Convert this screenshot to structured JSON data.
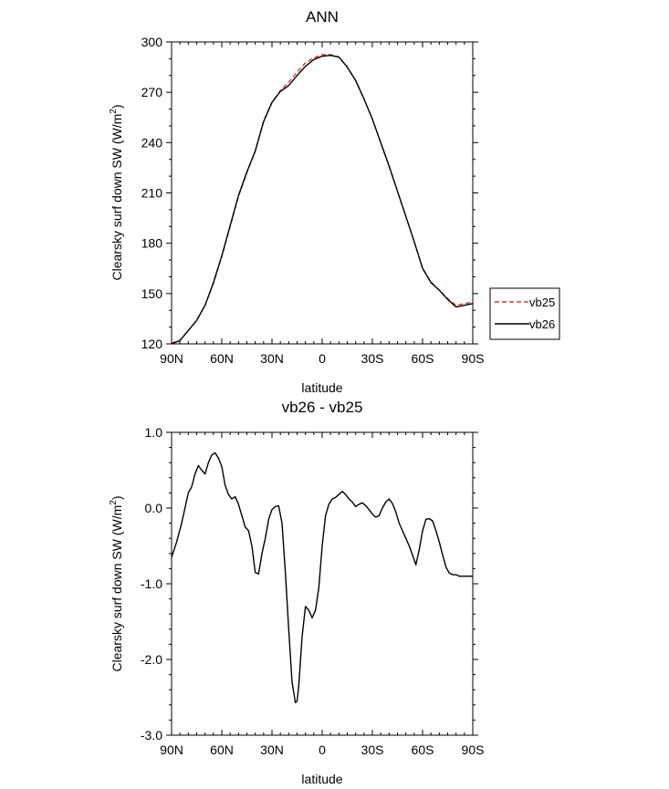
{
  "chart_data": [
    {
      "type": "line",
      "title": "ANN",
      "xlabel": "latitude",
      "ylabel_main": "Clearsky surf down SW (W/m",
      "ylabel_sup": "2",
      "ylabel_close": ")",
      "xlim": [
        90,
        -90
      ],
      "ylim": [
        120,
        300
      ],
      "xticks": [
        {
          "value": 90,
          "label": "90N"
        },
        {
          "value": 60,
          "label": "60N"
        },
        {
          "value": 30,
          "label": "30N"
        },
        {
          "value": 0,
          "label": "0"
        },
        {
          "value": -30,
          "label": "30S"
        },
        {
          "value": -60,
          "label": "60S"
        },
        {
          "value": -90,
          "label": "90S"
        }
      ],
      "yticks": [
        {
          "value": 120,
          "label": "120"
        },
        {
          "value": 150,
          "label": "150"
        },
        {
          "value": 180,
          "label": "180"
        },
        {
          "value": 210,
          "label": "210"
        },
        {
          "value": 240,
          "label": "240"
        },
        {
          "value": 270,
          "label": "270"
        },
        {
          "value": 300,
          "label": "300"
        }
      ],
      "legend": {
        "position": "right"
      },
      "series": [
        {
          "name": "vb25",
          "color": "#e8312e",
          "dash": "dashed",
          "x": [
            90,
            85,
            80,
            75,
            70,
            65,
            60,
            55,
            50,
            45,
            40,
            35,
            30,
            25,
            20,
            15,
            10,
            5,
            0,
            -5,
            -10,
            -15,
            -20,
            -25,
            -30,
            -35,
            -40,
            -45,
            -50,
            -55,
            -60,
            -65,
            -70,
            -75,
            -80,
            -85,
            -90
          ],
          "y": [
            120.5,
            122,
            128,
            134,
            143,
            156,
            172,
            190,
            208,
            222,
            235,
            253,
            264,
            271,
            276,
            282,
            287.5,
            290.5,
            292.5,
            292.5,
            291,
            285,
            277,
            266,
            254,
            240,
            226,
            211,
            196,
            181,
            165,
            157,
            152,
            147,
            143,
            144,
            145
          ]
        },
        {
          "name": "vb26",
          "color": "#000000",
          "dash": "solid",
          "x": [
            90,
            85,
            80,
            75,
            70,
            65,
            60,
            55,
            50,
            45,
            40,
            35,
            30,
            25,
            20,
            15,
            10,
            5,
            0,
            -5,
            -10,
            -15,
            -20,
            -25,
            -30,
            -35,
            -40,
            -45,
            -50,
            -55,
            -60,
            -65,
            -70,
            -75,
            -80,
            -85,
            -90
          ],
          "y": [
            120,
            122,
            128,
            134,
            143,
            156.5,
            172.5,
            190.5,
            208.5,
            222.5,
            235,
            252.5,
            264,
            270.5,
            274,
            280,
            285.5,
            289.5,
            291.5,
            292,
            291,
            285,
            277,
            266,
            254,
            240,
            226,
            211,
            196,
            181,
            165,
            156.5,
            152,
            146.5,
            142,
            143,
            144
          ]
        }
      ]
    },
    {
      "type": "line",
      "title": "vb26 - vb25",
      "xlabel": "latitude",
      "ylabel_main": "Clearsky surf down SW (W/m",
      "ylabel_sup": "2",
      "ylabel_close": ")",
      "xlim": [
        90,
        -90
      ],
      "ylim": [
        -3.0,
        1.0
      ],
      "xticks": [
        {
          "value": 90,
          "label": "90N"
        },
        {
          "value": 60,
          "label": "60N"
        },
        {
          "value": 30,
          "label": "30N"
        },
        {
          "value": 0,
          "label": "0"
        },
        {
          "value": -30,
          "label": "30S"
        },
        {
          "value": -60,
          "label": "60S"
        },
        {
          "value": -90,
          "label": "90S"
        }
      ],
      "yticks": [
        {
          "value": -3.0,
          "label": "-3.0"
        },
        {
          "value": -2.0,
          "label": "-2.0"
        },
        {
          "value": -1.0,
          "label": "-1.0"
        },
        {
          "value": 0.0,
          "label": "0.0"
        },
        {
          "value": 1.0,
          "label": "1.0"
        }
      ],
      "series": [
        {
          "name": "vb26 - vb25",
          "color": "#000000",
          "dash": "solid",
          "x": [
            90,
            87,
            84,
            82,
            80,
            78,
            76,
            74,
            72,
            70,
            68,
            66,
            64,
            62,
            60,
            58,
            56,
            54,
            52,
            50,
            48,
            46,
            44,
            42,
            40,
            38,
            36,
            34,
            32,
            30,
            28,
            26,
            24,
            22,
            20,
            18,
            16,
            15,
            14,
            12,
            10,
            8,
            6,
            4,
            2,
            0,
            -2,
            -4,
            -6,
            -8,
            -10,
            -12,
            -14,
            -16,
            -18,
            -20,
            -22,
            -24,
            -26,
            -28,
            -30,
            -32,
            -34,
            -36,
            -38,
            -40,
            -42,
            -44,
            -46,
            -48,
            -50,
            -52,
            -54,
            -56,
            -58,
            -60,
            -62,
            -64,
            -66,
            -68,
            -70,
            -72,
            -74,
            -76,
            -78,
            -80,
            -82,
            -84,
            -86,
            -88,
            -90
          ],
          "y": [
            -0.65,
            -0.45,
            -0.2,
            0.0,
            0.2,
            0.28,
            0.45,
            0.56,
            0.5,
            0.45,
            0.6,
            0.7,
            0.73,
            0.66,
            0.55,
            0.3,
            0.18,
            0.12,
            0.15,
            0.05,
            -0.1,
            -0.25,
            -0.3,
            -0.5,
            -0.85,
            -0.87,
            -0.6,
            -0.4,
            -0.15,
            -0.02,
            0.02,
            0.03,
            -0.2,
            -0.85,
            -1.6,
            -2.3,
            -2.57,
            -2.55,
            -2.35,
            -1.7,
            -1.3,
            -1.35,
            -1.45,
            -1.35,
            -1.05,
            -0.5,
            -0.1,
            0.05,
            0.12,
            0.14,
            0.18,
            0.22,
            0.18,
            0.12,
            0.08,
            0.02,
            0.05,
            0.07,
            0.03,
            -0.02,
            -0.08,
            -0.12,
            -0.1,
            0.0,
            0.08,
            0.12,
            0.06,
            -0.05,
            -0.2,
            -0.3,
            -0.4,
            -0.5,
            -0.62,
            -0.75,
            -0.55,
            -0.3,
            -0.15,
            -0.14,
            -0.17,
            -0.3,
            -0.45,
            -0.62,
            -0.78,
            -0.86,
            -0.88,
            -0.88,
            -0.9,
            -0.9,
            -0.9,
            -0.9,
            -0.9
          ]
        }
      ]
    }
  ]
}
